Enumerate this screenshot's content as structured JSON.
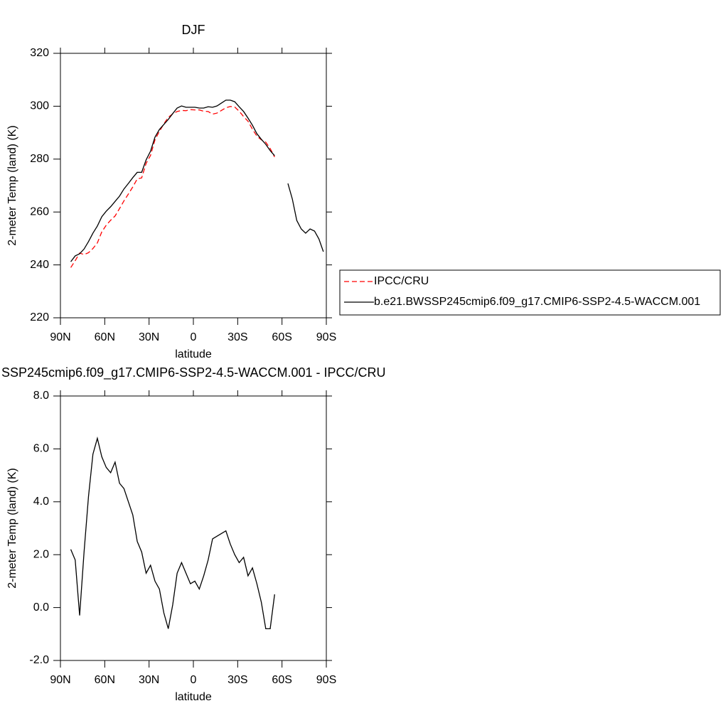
{
  "chart_data": [
    {
      "type": "line",
      "title": "DJF",
      "xlabel": "latitude",
      "ylabel": "2-meter Temp (land) (K)",
      "x": [
        83,
        80,
        77,
        74,
        71,
        68,
        65,
        62,
        59,
        56,
        53,
        50,
        47,
        44,
        41,
        38,
        35,
        32,
        29,
        26,
        23,
        20,
        17,
        14,
        11,
        8,
        5,
        2,
        -1,
        -4,
        -7,
        -10,
        -13,
        -16,
        -19,
        -22,
        -25,
        -28,
        -31,
        -34,
        -37,
        -40,
        -43,
        -46,
        -49,
        -52,
        -55,
        -58,
        -61,
        -64,
        -67,
        -70,
        -73,
        -76,
        -79,
        -82,
        -85,
        -88
      ],
      "series": [
        {
          "name": "IPCC/CRU",
          "color": "#ff0000",
          "dashed": true,
          "values": [
            239.0,
            241.6,
            244.5,
            243.9,
            244.6,
            246.2,
            248.3,
            252.5,
            255.0,
            256.9,
            258.5,
            261.3,
            264.2,
            266.8,
            269.5,
            272.5,
            272.9,
            278.4,
            281.4,
            287.3,
            290.5,
            293.3,
            295.8,
            297.1,
            298.0,
            298.4,
            298.3,
            298.7,
            298.6,
            298.6,
            298.1,
            298.0,
            297.0,
            297.4,
            298.4,
            299.4,
            299.9,
            299.7,
            298.1,
            296.1,
            294.3,
            291.3,
            288.7,
            287.3,
            286.4,
            284.0,
            280.8,
            null,
            null,
            null,
            null,
            null,
            null,
            null,
            null,
            null,
            null,
            null
          ]
        },
        {
          "name": "b.e21.BWSSP245cmip6.f09_g17.CMIP6-SSP2-4.5-WACCM.001",
          "color": "#000000",
          "dashed": false,
          "values": [
            241.2,
            243.4,
            244.2,
            246.0,
            248.8,
            252.0,
            254.7,
            258.2,
            260.3,
            262.0,
            264.0,
            266.0,
            268.7,
            270.8,
            273.0,
            275.0,
            275.0,
            279.7,
            283.0,
            288.3,
            291.2,
            293.1,
            295.0,
            297.2,
            299.3,
            300.1,
            299.6,
            299.6,
            299.6,
            299.3,
            299.3,
            299.8,
            299.6,
            300.1,
            301.2,
            302.3,
            302.3,
            301.7,
            299.8,
            298.0,
            295.5,
            292.8,
            289.6,
            287.5,
            285.6,
            283.2,
            281.3,
            null,
            null,
            270.8,
            264.9,
            256.8,
            253.6,
            252.0,
            253.6,
            252.8,
            249.8,
            245.0
          ]
        }
      ],
      "xlim": [
        90,
        -90
      ],
      "xticks": [
        {
          "value": 90,
          "label": "90N"
        },
        {
          "value": 60,
          "label": "60N"
        },
        {
          "value": 30,
          "label": "30N"
        },
        0,
        {
          "value": -30,
          "label": "30S"
        },
        {
          "value": -60,
          "label": "60S"
        },
        {
          "value": -90,
          "label": "90S"
        }
      ],
      "ylim": [
        220,
        320
      ],
      "yticks": [
        220,
        240,
        260,
        280,
        300,
        320
      ]
    },
    {
      "type": "line",
      "title": "SSP245cmip6.f09_g17.CMIP6-SSP2-4.5-WACCM.001 - IPCC/CRU",
      "xlabel": "latitude",
      "ylabel": "2-meter Temp (land) (K)",
      "x": [
        83,
        80,
        77,
        74,
        71,
        68,
        65,
        62,
        59,
        56,
        53,
        50,
        47,
        44,
        41,
        38,
        35,
        32,
        29,
        26,
        23,
        20,
        17,
        14,
        11,
        8,
        5,
        2,
        -1,
        -4,
        -7,
        -10,
        -13,
        -16,
        -19,
        -22,
        -25,
        -28,
        -31,
        -34,
        -37,
        -40,
        -43,
        -46,
        -49,
        -52,
        -55
      ],
      "series": [
        {
          "color": "#000000",
          "dashed": false,
          "values": [
            2.2,
            1.8,
            -0.3,
            2.1,
            4.2,
            5.8,
            6.4,
            5.7,
            5.3,
            5.1,
            5.5,
            4.7,
            4.5,
            4.0,
            3.5,
            2.5,
            2.1,
            1.3,
            1.6,
            1.0,
            0.7,
            -0.2,
            -0.8,
            0.1,
            1.3,
            1.7,
            1.3,
            0.9,
            1.0,
            0.7,
            1.2,
            1.8,
            2.6,
            2.7,
            2.8,
            2.9,
            2.4,
            2.0,
            1.7,
            1.9,
            1.2,
            1.5,
            0.9,
            0.2,
            -0.8,
            -0.8,
            0.5
          ]
        }
      ],
      "xlim": [
        90,
        -90
      ],
      "xticks": [
        {
          "value": 90,
          "label": "90N"
        },
        {
          "value": 60,
          "label": "60N"
        },
        {
          "value": 30,
          "label": "30N"
        },
        0,
        {
          "value": -30,
          "label": "30S"
        },
        {
          "value": -60,
          "label": "60S"
        },
        {
          "value": -90,
          "label": "90S"
        }
      ],
      "ylim": [
        -2,
        8
      ],
      "yticks": [
        {
          "value": -2,
          "label": "-2.0"
        },
        {
          "value": 0,
          "label": "0.0"
        },
        {
          "value": 2,
          "label": "2.0"
        },
        {
          "value": 4,
          "label": "4.0"
        },
        {
          "value": 6,
          "label": "6.0"
        },
        {
          "value": 8,
          "label": "8.0"
        }
      ]
    }
  ]
}
